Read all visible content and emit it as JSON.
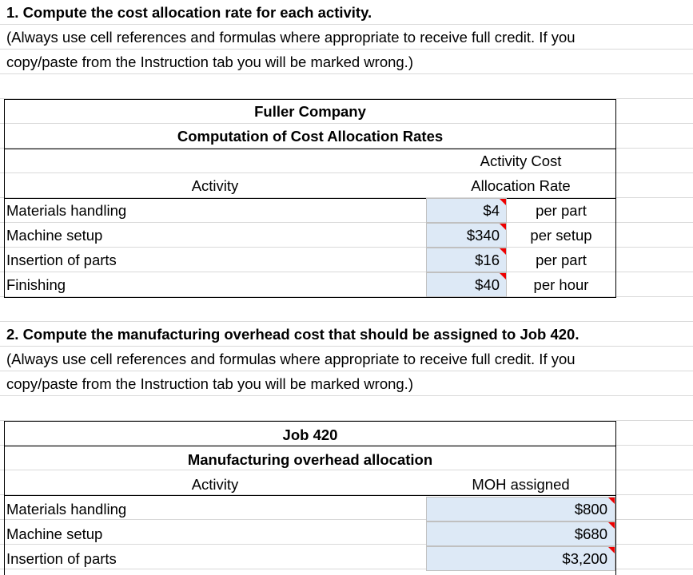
{
  "section1": {
    "heading": "1. Compute the cost allocation rate for each activity.",
    "instruction_line1": "(Always use cell references and formulas where appropriate to receive full credit. If you",
    "instruction_line2": "copy/paste from the Instruction tab you will be marked wrong.)"
  },
  "table1": {
    "company": "Fuller Company",
    "title": "Computation of Cost Allocation Rates",
    "header_activity": "Activity",
    "header_rate_line1": "Activity Cost",
    "header_rate_line2": "Allocation Rate",
    "rows": [
      [
        "Materials handling",
        "$4",
        "per part"
      ],
      [
        "Machine setup",
        "$340",
        "per setup"
      ],
      [
        "Insertion of parts",
        "$16",
        "per part"
      ],
      [
        "Finishing",
        "$40",
        "per hour"
      ]
    ]
  },
  "section2": {
    "heading": "2. Compute the manufacturing overhead cost that should be assigned to Job 420.",
    "instruction_line1": "(Always use cell references and formulas where appropriate to receive full credit. If you",
    "instruction_line2": "copy/paste from the Instruction tab you will be marked wrong.)"
  },
  "table2": {
    "job": "Job 420",
    "title": "Manufacturing overhead allocation",
    "header_activity": "Activity",
    "header_moh": "MOH assigned",
    "rows": [
      [
        "Materials handling",
        "$800"
      ],
      [
        "Machine setup",
        "$680"
      ],
      [
        "Insertion of parts",
        "$3,200"
      ]
    ]
  }
}
